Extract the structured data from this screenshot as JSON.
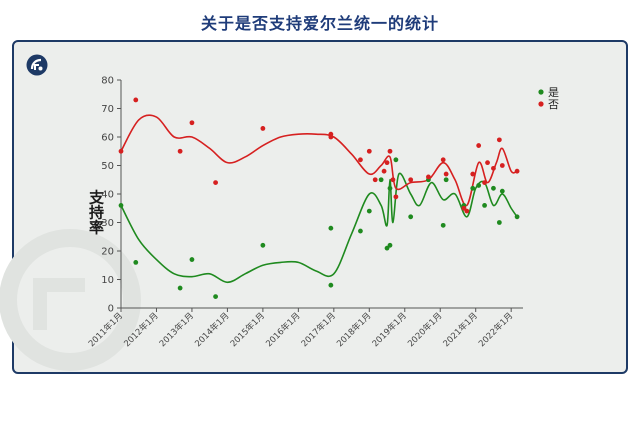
{
  "page": {
    "title": "关于是否支持爱尔兰统一的统计"
  },
  "colors": {
    "yes": "#1f8a1f",
    "no": "#d62020",
    "title": "#1f3c7a",
    "frame": "#1e3a66"
  },
  "chart_data": {
    "type": "scatter",
    "title": "关于是否支持爱尔兰统一的统计",
    "ylabel": "支持率",
    "xlabel": "",
    "ylim": [
      0,
      80
    ],
    "y_ticks": [
      0,
      10,
      20,
      30,
      40,
      50,
      60,
      70,
      80
    ],
    "x_range": [
      "2011-01",
      "2022-05"
    ],
    "x_ticks": [
      "2011年1月",
      "2012年1月",
      "2013年1月",
      "2014年1月",
      "2015年1月",
      "2016年1月",
      "2017年1月",
      "2018年1月",
      "2019年1月",
      "2020年1月",
      "2021年1月",
      "2022年1月"
    ],
    "legend_position": "top-right",
    "grid": false,
    "series": [
      {
        "name": "是",
        "color": "#1f8a1f",
        "points": [
          {
            "x": "2011-01",
            "y": 36
          },
          {
            "x": "2011-06",
            "y": 16
          },
          {
            "x": "2012-09",
            "y": 7
          },
          {
            "x": "2013-01",
            "y": 17
          },
          {
            "x": "2013-09",
            "y": 4
          },
          {
            "x": "2015-01",
            "y": 22
          },
          {
            "x": "2016-12",
            "y": 28
          },
          {
            "x": "2016-12",
            "y": 8
          },
          {
            "x": "2017-10",
            "y": 27
          },
          {
            "x": "2018-01",
            "y": 34
          },
          {
            "x": "2018-05",
            "y": 45
          },
          {
            "x": "2018-07",
            "y": 21
          },
          {
            "x": "2018-08",
            "y": 22
          },
          {
            "x": "2018-08",
            "y": 42
          },
          {
            "x": "2018-10",
            "y": 52
          },
          {
            "x": "2019-03",
            "y": 32
          },
          {
            "x": "2019-09",
            "y": 45
          },
          {
            "x": "2020-02",
            "y": 29
          },
          {
            "x": "2020-03",
            "y": 45
          },
          {
            "x": "2020-09",
            "y": 36
          },
          {
            "x": "2020-09",
            "y": 35
          },
          {
            "x": "2020-12",
            "y": 42
          },
          {
            "x": "2021-02",
            "y": 43
          },
          {
            "x": "2021-04",
            "y": 36
          },
          {
            "x": "2021-07",
            "y": 42
          },
          {
            "x": "2021-09",
            "y": 30
          },
          {
            "x": "2021-10",
            "y": 41
          },
          {
            "x": "2022-03",
            "y": 32
          }
        ],
        "trend": [
          {
            "x": "2011-01",
            "y": 36
          },
          {
            "x": "2011-07",
            "y": 24
          },
          {
            "x": "2012-01",
            "y": 17
          },
          {
            "x": "2012-07",
            "y": 12
          },
          {
            "x": "2013-01",
            "y": 11
          },
          {
            "x": "2013-07",
            "y": 12
          },
          {
            "x": "2014-01",
            "y": 9
          },
          {
            "x": "2014-07",
            "y": 12
          },
          {
            "x": "2015-01",
            "y": 15
          },
          {
            "x": "2015-07",
            "y": 16
          },
          {
            "x": "2016-01",
            "y": 16
          },
          {
            "x": "2016-07",
            "y": 13
          },
          {
            "x": "2017-01",
            "y": 12
          },
          {
            "x": "2017-07",
            "y": 26
          },
          {
            "x": "2018-01",
            "y": 40
          },
          {
            "x": "2018-05",
            "y": 36
          },
          {
            "x": "2018-07",
            "y": 29
          },
          {
            "x": "2018-08",
            "y": 45
          },
          {
            "x": "2018-09",
            "y": 30
          },
          {
            "x": "2018-11",
            "y": 47
          },
          {
            "x": "2019-03",
            "y": 40
          },
          {
            "x": "2019-06",
            "y": 36
          },
          {
            "x": "2019-10",
            "y": 44
          },
          {
            "x": "2020-02",
            "y": 38
          },
          {
            "x": "2020-06",
            "y": 40
          },
          {
            "x": "2020-10",
            "y": 32
          },
          {
            "x": "2021-01",
            "y": 42
          },
          {
            "x": "2021-04",
            "y": 44
          },
          {
            "x": "2021-07",
            "y": 36
          },
          {
            "x": "2021-10",
            "y": 40
          },
          {
            "x": "2022-01",
            "y": 35
          },
          {
            "x": "2022-03",
            "y": 32
          }
        ]
      },
      {
        "name": "否",
        "color": "#d62020",
        "points": [
          {
            "x": "2011-01",
            "y": 55
          },
          {
            "x": "2011-06",
            "y": 73
          },
          {
            "x": "2012-09",
            "y": 55
          },
          {
            "x": "2013-01",
            "y": 65
          },
          {
            "x": "2013-09",
            "y": 44
          },
          {
            "x": "2015-01",
            "y": 63
          },
          {
            "x": "2016-12",
            "y": 60
          },
          {
            "x": "2016-12",
            "y": 61
          },
          {
            "x": "2017-10",
            "y": 52
          },
          {
            "x": "2018-01",
            "y": 55
          },
          {
            "x": "2018-03",
            "y": 45
          },
          {
            "x": "2018-06",
            "y": 48
          },
          {
            "x": "2018-07",
            "y": 51
          },
          {
            "x": "2018-08",
            "y": 55
          },
          {
            "x": "2018-09",
            "y": 45
          },
          {
            "x": "2018-10",
            "y": 39
          },
          {
            "x": "2019-03",
            "y": 45
          },
          {
            "x": "2019-09",
            "y": 46
          },
          {
            "x": "2020-02",
            "y": 52
          },
          {
            "x": "2020-03",
            "y": 47
          },
          {
            "x": "2020-09",
            "y": 35
          },
          {
            "x": "2020-10",
            "y": 34
          },
          {
            "x": "2020-12",
            "y": 47
          },
          {
            "x": "2021-02",
            "y": 57
          },
          {
            "x": "2021-04",
            "y": 44
          },
          {
            "x": "2021-05",
            "y": 51
          },
          {
            "x": "2021-07",
            "y": 49
          },
          {
            "x": "2021-09",
            "y": 59
          },
          {
            "x": "2021-10",
            "y": 50
          },
          {
            "x": "2022-03",
            "y": 48
          }
        ],
        "trend": [
          {
            "x": "2011-01",
            "y": 55
          },
          {
            "x": "2011-07",
            "y": 66
          },
          {
            "x": "2012-01",
            "y": 67
          },
          {
            "x": "2012-07",
            "y": 60
          },
          {
            "x": "2013-01",
            "y": 60
          },
          {
            "x": "2013-07",
            "y": 56
          },
          {
            "x": "2014-01",
            "y": 51
          },
          {
            "x": "2014-07",
            "y": 53
          },
          {
            "x": "2015-01",
            "y": 57
          },
          {
            "x": "2015-07",
            "y": 60
          },
          {
            "x": "2016-01",
            "y": 61
          },
          {
            "x": "2016-07",
            "y": 61
          },
          {
            "x": "2017-01",
            "y": 60
          },
          {
            "x": "2017-07",
            "y": 54
          },
          {
            "x": "2018-01",
            "y": 47
          },
          {
            "x": "2018-05",
            "y": 50
          },
          {
            "x": "2018-08",
            "y": 53
          },
          {
            "x": "2018-10",
            "y": 42
          },
          {
            "x": "2019-03",
            "y": 44
          },
          {
            "x": "2019-09",
            "y": 45
          },
          {
            "x": "2020-02",
            "y": 51
          },
          {
            "x": "2020-06",
            "y": 45
          },
          {
            "x": "2020-10",
            "y": 36
          },
          {
            "x": "2021-02",
            "y": 51
          },
          {
            "x": "2021-05",
            "y": 44
          },
          {
            "x": "2021-08",
            "y": 51
          },
          {
            "x": "2021-10",
            "y": 56
          },
          {
            "x": "2022-01",
            "y": 48
          },
          {
            "x": "2022-03",
            "y": 48
          }
        ]
      }
    ]
  }
}
